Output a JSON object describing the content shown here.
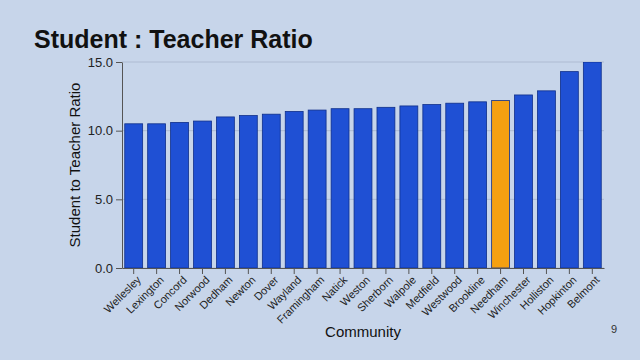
{
  "chart_data": {
    "type": "bar",
    "title": "Student : Teacher Ratio",
    "x_label": "Community",
    "y_label": "Student to Teacher Ratio",
    "categories": [
      "Wellesley",
      "Lexington",
      "Concord",
      "Norwood",
      "Dedham",
      "Newton",
      "Dover",
      "Wayland",
      "Framingham",
      "Natick",
      "Weston",
      "Sherborn",
      "Walpole",
      "Medfield",
      "Westwood",
      "Brookline",
      "Needham",
      "Winchester",
      "Holliston",
      "Hopkinton",
      "Belmont"
    ],
    "values": [
      10.5,
      10.5,
      10.6,
      10.7,
      11.0,
      11.1,
      11.2,
      11.4,
      11.5,
      11.6,
      11.6,
      11.7,
      11.8,
      11.9,
      12.0,
      12.1,
      12.2,
      12.6,
      12.9,
      14.3,
      15.0
    ],
    "colors": [
      "#1f50d4",
      "#1f50d4",
      "#1f50d4",
      "#1f50d4",
      "#1f50d4",
      "#1f50d4",
      "#1f50d4",
      "#1f50d4",
      "#1f50d4",
      "#1f50d4",
      "#1f50d4",
      "#1f50d4",
      "#1f50d4",
      "#1f50d4",
      "#1f50d4",
      "#1f50d4",
      "#f5a011",
      "#1f50d4",
      "#1f50d4",
      "#1f50d4",
      "#1f50d4"
    ],
    "ylim": [
      0,
      15
    ],
    "yticks": [
      {
        "value": 0,
        "label": "0.0"
      },
      {
        "value": 5,
        "label": "5.0"
      },
      {
        "value": 10,
        "label": "10.0"
      },
      {
        "value": 15,
        "label": "15.0"
      }
    ],
    "grid": true,
    "annotations": [
      "9"
    ]
  }
}
